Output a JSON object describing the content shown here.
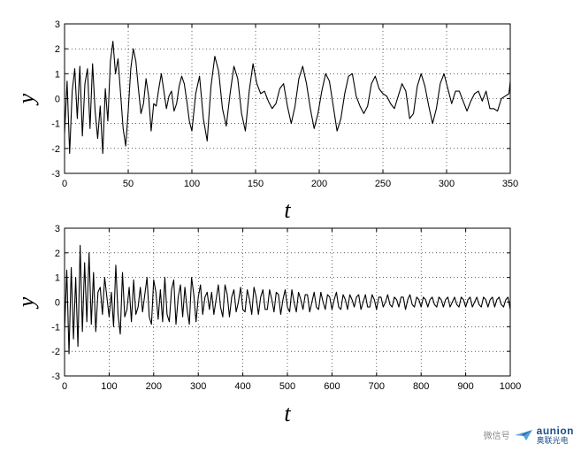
{
  "chart_data": [
    {
      "type": "line",
      "title": "",
      "xlabel": "t",
      "ylabel": "y",
      "xlim": [
        0,
        350
      ],
      "ylim": [
        -3,
        3
      ],
      "xticks": [
        0,
        50,
        100,
        150,
        200,
        250,
        300,
        350
      ],
      "yticks": [
        -3,
        -2,
        -1,
        0,
        1,
        2,
        3
      ],
      "grid": true,
      "series": [
        {
          "x": [
            0,
            2,
            4,
            6,
            8,
            10,
            12,
            14,
            16,
            18,
            20,
            22,
            24,
            26,
            28,
            30,
            32,
            34,
            36,
            38,
            40,
            42,
            44,
            46,
            48,
            50,
            52,
            54,
            56,
            58,
            60,
            62,
            64,
            66,
            68,
            70,
            72,
            74,
            76,
            78,
            80,
            82,
            84,
            86,
            88,
            90,
            92,
            94,
            96,
            98,
            100,
            103,
            106,
            109,
            112,
            115,
            118,
            121,
            124,
            127,
            130,
            133,
            136,
            139,
            142,
            145,
            148,
            151,
            154,
            157,
            160,
            163,
            166,
            169,
            172,
            175,
            178,
            181,
            184,
            187,
            190,
            193,
            196,
            199,
            202,
            205,
            208,
            211,
            214,
            217,
            220,
            223,
            226,
            229,
            232,
            235,
            238,
            241,
            244,
            247,
            250,
            253,
            256,
            259,
            262,
            265,
            268,
            271,
            274,
            277,
            280,
            283,
            286,
            289,
            292,
            295,
            298,
            301,
            304,
            307,
            310,
            313,
            316,
            319,
            322,
            325,
            328,
            331,
            334,
            337,
            340,
            343,
            346,
            349,
            350
          ],
          "y": [
            -1.4,
            0.7,
            -2.2,
            0.3,
            1.2,
            -0.8,
            1.3,
            -1.5,
            0.6,
            1.2,
            -1.2,
            1.4,
            -0.5,
            -1.6,
            -0.3,
            -2.2,
            0.4,
            -0.9,
            1.5,
            2.3,
            1.0,
            1.6,
            0.2,
            -1.2,
            -1.9,
            -0.5,
            1.2,
            2.0,
            1.5,
            0.4,
            -0.6,
            -0.2,
            0.8,
            0.1,
            -1.3,
            -0.2,
            -0.3,
            0.4,
            1.0,
            0.3,
            -0.4,
            0.1,
            0.3,
            -0.5,
            -0.2,
            0.5,
            0.9,
            0.6,
            -0.1,
            -0.9,
            -1.3,
            0.2,
            0.9,
            -0.8,
            -1.7,
            0.5,
            1.7,
            1.1,
            -0.4,
            -1.1,
            0.2,
            1.3,
            0.8,
            -0.6,
            -1.3,
            0.3,
            1.4,
            0.6,
            0.2,
            0.3,
            -0.1,
            -0.4,
            -0.2,
            0.4,
            0.6,
            -0.3,
            -1.0,
            -0.3,
            0.8,
            1.3,
            0.6,
            -0.4,
            -1.2,
            -0.6,
            0.3,
            1.0,
            0.7,
            -0.3,
            -1.3,
            -0.8,
            0.2,
            0.9,
            1.0,
            0.1,
            -0.3,
            -0.6,
            -0.3,
            0.6,
            0.9,
            0.4,
            0.2,
            0.1,
            -0.2,
            -0.4,
            0.1,
            0.6,
            0.3,
            -0.8,
            -0.6,
            0.5,
            1.0,
            0.5,
            -0.3,
            -1.0,
            -0.4,
            0.6,
            1.0,
            0.4,
            -0.2,
            0.3,
            0.3,
            -0.1,
            -0.5,
            -0.1,
            0.2,
            0.3,
            -0.1,
            0.3,
            -0.4,
            -0.4,
            -0.5,
            0.0,
            0.1,
            0.2,
            0.7
          ]
        }
      ]
    },
    {
      "type": "line",
      "title": "",
      "xlabel": "t",
      "ylabel": "y",
      "xlim": [
        0,
        1000
      ],
      "ylim": [
        -3,
        3
      ],
      "xticks": [
        0,
        100,
        200,
        300,
        400,
        500,
        600,
        700,
        800,
        900,
        1000
      ],
      "yticks": [
        -3,
        -2,
        -1,
        0,
        1,
        2,
        3
      ],
      "grid": true,
      "series": [
        {
          "x": [
            0,
            5,
            10,
            15,
            20,
            25,
            30,
            35,
            40,
            45,
            50,
            55,
            60,
            65,
            70,
            75,
            80,
            85,
            90,
            95,
            100,
            105,
            110,
            115,
            120,
            125,
            130,
            135,
            140,
            145,
            150,
            155,
            160,
            165,
            170,
            175,
            180,
            185,
            190,
            195,
            200,
            205,
            210,
            215,
            220,
            225,
            230,
            235,
            240,
            245,
            250,
            255,
            260,
            265,
            270,
            275,
            280,
            285,
            290,
            295,
            300,
            305,
            310,
            315,
            320,
            325,
            330,
            335,
            340,
            345,
            350,
            355,
            360,
            365,
            370,
            375,
            380,
            385,
            390,
            395,
            400,
            405,
            410,
            415,
            420,
            425,
            430,
            435,
            440,
            445,
            450,
            455,
            460,
            465,
            470,
            475,
            480,
            485,
            490,
            495,
            500,
            505,
            510,
            515,
            520,
            525,
            530,
            535,
            540,
            545,
            550,
            555,
            560,
            565,
            570,
            575,
            580,
            585,
            590,
            595,
            600,
            605,
            610,
            615,
            620,
            625,
            630,
            635,
            640,
            645,
            650,
            655,
            660,
            665,
            670,
            675,
            680,
            685,
            690,
            695,
            700,
            705,
            710,
            715,
            720,
            725,
            730,
            735,
            740,
            745,
            750,
            755,
            760,
            765,
            770,
            775,
            780,
            785,
            790,
            795,
            800,
            805,
            810,
            815,
            820,
            825,
            830,
            835,
            840,
            845,
            850,
            855,
            860,
            865,
            870,
            875,
            880,
            885,
            890,
            895,
            900,
            905,
            910,
            915,
            920,
            925,
            930,
            935,
            940,
            945,
            950,
            955,
            960,
            965,
            970,
            975,
            980,
            985,
            990,
            995,
            1000
          ],
          "y": [
            -1.2,
            1.3,
            -2.1,
            1.4,
            -1.5,
            1.0,
            -1.8,
            2.3,
            -1.2,
            1.6,
            -0.8,
            2.0,
            -0.9,
            1.2,
            -1.2,
            0.4,
            0.6,
            -0.5,
            1.0,
            0.2,
            -0.6,
            0.4,
            -1.0,
            1.5,
            -0.5,
            -1.3,
            1.2,
            -0.6,
            -0.3,
            0.6,
            -0.8,
            0.9,
            -0.5,
            -0.2,
            0.6,
            -0.4,
            0.3,
            1.0,
            -0.6,
            -0.9,
            0.9,
            0.4,
            -0.7,
            0.5,
            -0.8,
            1.0,
            -0.5,
            -0.8,
            0.5,
            0.9,
            -0.9,
            0.2,
            0.7,
            -0.6,
            0.6,
            -0.3,
            -0.9,
            1.0,
            0.3,
            -0.8,
            0.2,
            0.7,
            -0.5,
            0.2,
            0.4,
            -0.3,
            0.4,
            -0.5,
            0.1,
            0.7,
            -0.2,
            -0.6,
            0.7,
            0.3,
            -0.6,
            0.2,
            0.5,
            -0.4,
            0.0,
            0.6,
            -0.3,
            -0.4,
            0.5,
            0.1,
            -0.5,
            0.6,
            0.2,
            -0.5,
            0.2,
            0.5,
            -0.3,
            -0.3,
            0.5,
            0.1,
            -0.4,
            0.4,
            0.3,
            -0.5,
            0.1,
            0.5,
            -0.2,
            -0.4,
            0.5,
            0.0,
            -0.4,
            0.4,
            0.1,
            -0.3,
            0.3,
            0.3,
            -0.4,
            0.0,
            0.4,
            -0.2,
            -0.3,
            0.4,
            0.0,
            -0.3,
            0.3,
            0.2,
            -0.3,
            0.1,
            0.4,
            -0.2,
            -0.3,
            0.3,
            0.1,
            -0.3,
            0.3,
            0.1,
            -0.2,
            0.2,
            0.3,
            -0.3,
            0.0,
            0.3,
            -0.2,
            -0.2,
            0.3,
            0.1,
            -0.3,
            0.2,
            0.2,
            -0.2,
            0.0,
            0.3,
            -0.1,
            -0.2,
            0.2,
            0.1,
            -0.2,
            0.2,
            0.2,
            -0.3,
            0.1,
            0.3,
            -0.1,
            -0.2,
            0.2,
            0.1,
            -0.2,
            0.2,
            0.1,
            -0.2,
            0.1,
            0.2,
            -0.1,
            -0.2,
            0.2,
            0.1,
            -0.2,
            0.1,
            0.2,
            -0.2,
            0.0,
            0.2,
            -0.1,
            -0.2,
            0.2,
            0.1,
            -0.2,
            0.1,
            0.2,
            -0.2,
            0.0,
            0.2,
            -0.1,
            -0.2,
            0.2,
            0.1,
            -0.2,
            0.1,
            0.2,
            -0.2,
            0.1,
            0.2,
            -0.1,
            -0.2,
            0.1,
            0.2,
            -0.3
          ]
        }
      ]
    }
  ],
  "watermark": {
    "side_text": "微信号",
    "brand_top": "aunion",
    "brand_bottom": "奥联光电",
    "logo_icon": "paper-plane-icon"
  }
}
